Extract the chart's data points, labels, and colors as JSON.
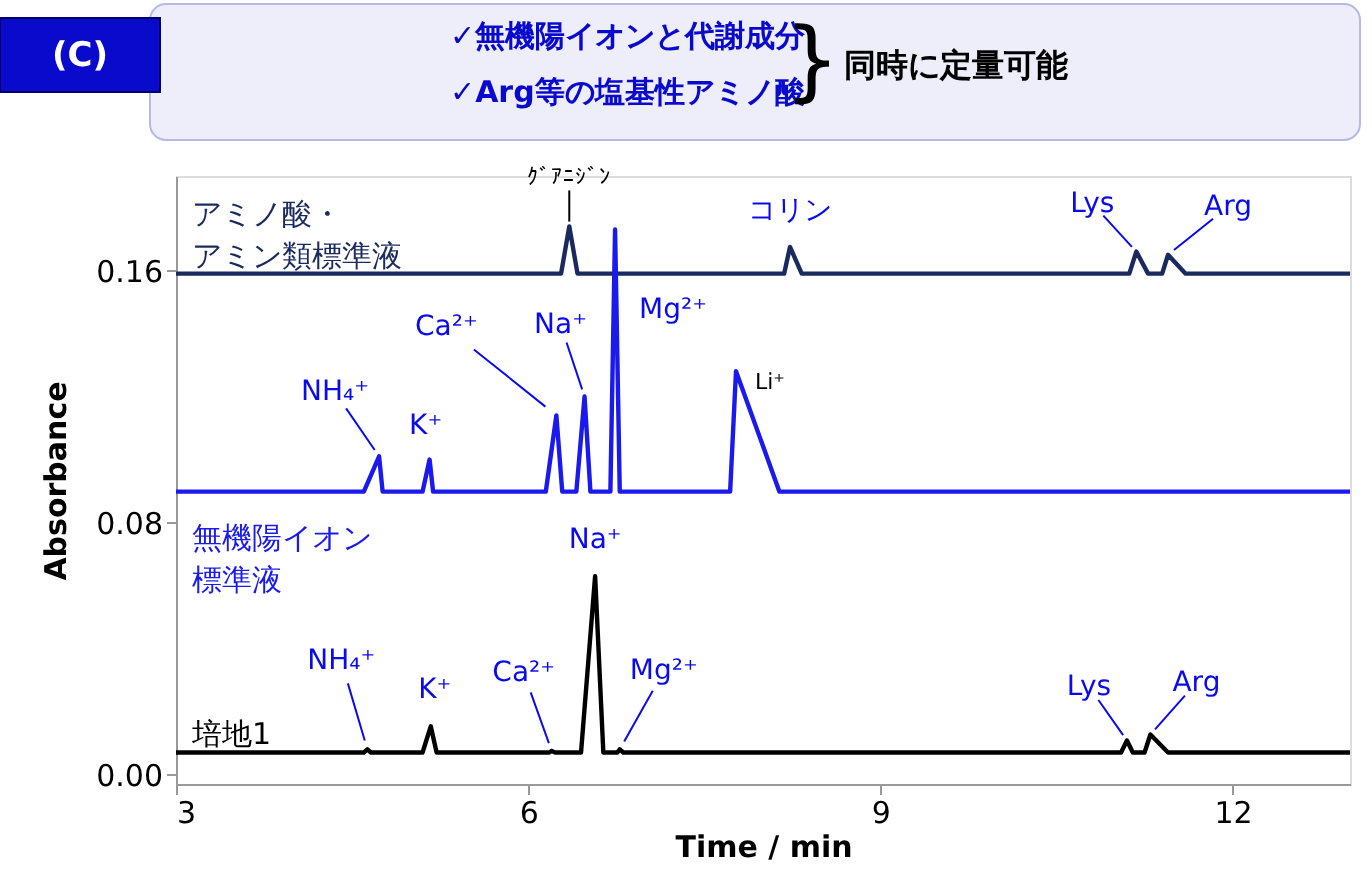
{
  "chart_data": {
    "type": "line",
    "title": "(C)",
    "annotations": [
      "✓無機陽イオンと代謝成分",
      "✓Arg等の塩基性アミノ酸",
      "}",
      "同時に定量可能",
      {
        "text": "ｸﾞｱﾆｼﾞﾝ",
        "x": 6.35,
        "y": 0.174
      },
      {
        "text": "コリン",
        "x": 8.23,
        "y": 0.1675
      },
      {
        "text": "Lys",
        "x": 11.18,
        "y": 0.166
      },
      {
        "text": "Arg",
        "x": 11.45,
        "y": 0.165
      },
      {
        "text": "NH₄⁺",
        "x": 4.73,
        "y": 0.101
      },
      {
        "text": "K⁺",
        "x": 5.16,
        "y": 0.1
      },
      {
        "text": "Ca²⁺",
        "x": 6.24,
        "y": 0.114
      },
      {
        "text": "Na⁺",
        "x": 6.48,
        "y": 0.12
      },
      {
        "text": "Mg²⁺",
        "x": 6.74,
        "y": 0.173
      },
      {
        "text": "Li⁺",
        "x": 7.77,
        "y": 0.128
      },
      {
        "text": "NH₄⁺",
        "x": 4.63,
        "y": 0.008
      },
      {
        "text": "K⁺",
        "x": 5.17,
        "y": 0.0153
      },
      {
        "text": "Ca²⁺",
        "x": 6.2,
        "y": 0.0075
      },
      {
        "text": "Na⁺",
        "x": 6.57,
        "y": 0.063
      },
      {
        "text": "Mg²⁺",
        "x": 6.78,
        "y": 0.008
      },
      {
        "text": "Lys",
        "x": 11.1,
        "y": 0.0108
      },
      {
        "text": "Arg",
        "x": 11.3,
        "y": 0.0127
      }
    ],
    "xlabel": "Time / min",
    "ylabel": "Absorbance",
    "xlim": [
      3,
      13
    ],
    "ylim": [
      -0.003,
      0.19
    ],
    "xticks": [
      3,
      6,
      9,
      12
    ],
    "yticks": [
      {
        "value": 0,
        "label": "0.00"
      },
      {
        "value": 0.08,
        "label": "0.08"
      },
      {
        "value": 0.16,
        "label": "0.16"
      }
    ],
    "grid": false,
    "series": [
      {
        "name": "アミノ酸・アミン類標準液",
        "color": "#1a2a5e",
        "x": [
          3,
          6.28,
          6.35,
          6.42,
          8.18,
          8.23,
          8.33,
          11.12,
          11.18,
          11.28,
          11.4,
          11.45,
          11.6,
          13
        ],
        "values": [
          0.159,
          0.159,
          0.174,
          0.159,
          0.159,
          0.1675,
          0.159,
          0.159,
          0.166,
          0.159,
          0.159,
          0.165,
          0.159,
          0.159
        ]
      },
      {
        "name": "無機陽イオン標準液",
        "color": "#1a1aee",
        "x": [
          3,
          4.6,
          4.73,
          4.76,
          5.1,
          5.16,
          5.19,
          6.15,
          6.24,
          6.29,
          6.41,
          6.48,
          6.53,
          6.7,
          6.74,
          6.78,
          7.72,
          7.77,
          8.14,
          13
        ],
        "values": [
          0.0898,
          0.0898,
          0.101,
          0.0898,
          0.0898,
          0.1,
          0.0898,
          0.0898,
          0.114,
          0.0898,
          0.0898,
          0.12,
          0.0898,
          0.0898,
          0.173,
          0.0898,
          0.0898,
          0.128,
          0.0898,
          0.0898
        ]
      },
      {
        "name": "培地1",
        "color": "#000000",
        "x": [
          3,
          4.6,
          4.63,
          4.66,
          5.1,
          5.17,
          5.22,
          6.18,
          6.2,
          6.23,
          6.45,
          6.57,
          6.64,
          6.76,
          6.78,
          6.81,
          11.05,
          11.1,
          11.15,
          11.25,
          11.3,
          11.45,
          13
        ],
        "values": [
          0.007,
          0.007,
          0.008,
          0.007,
          0.007,
          0.0153,
          0.007,
          0.007,
          0.0075,
          0.007,
          0.007,
          0.063,
          0.007,
          0.007,
          0.008,
          0.007,
          0.007,
          0.0108,
          0.007,
          0.007,
          0.0127,
          0.007,
          0.007
        ]
      }
    ]
  }
}
